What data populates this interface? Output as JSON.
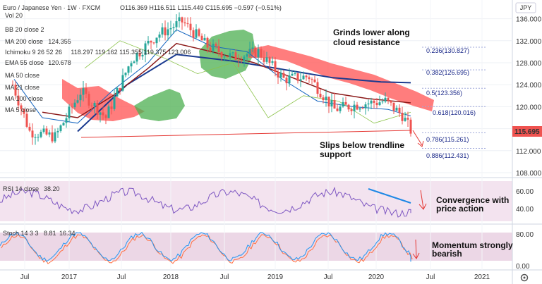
{
  "header": {
    "title": "Euro / Japanese Yen · 1W · FXCM",
    "ohlc": "O116.369 H116.511 L115.449 C115.695 −0.597 (−0.51%)",
    "currency": "JPY"
  },
  "indicators": [
    {
      "label": "Vol 20",
      "dim": true
    },
    {
      "label": "BB 20 close 2",
      "dim": true
    },
    {
      "label": "MA 200 close",
      "value": "124.355"
    },
    {
      "label": "Ichimoku 9 26 52 26",
      "value": "118.297 119.162 115.355 119.375 123.006"
    },
    {
      "label": "EMA 55 close",
      "value": "120.678"
    },
    {
      "label": "MA 50 close",
      "dim": true
    },
    {
      "label": "MA 21 close",
      "dim": true
    },
    {
      "label": "MA 100 close",
      "dim": true
    },
    {
      "label": "MA 5 close",
      "dim": true
    }
  ],
  "price_axis": {
    "ticks": [
      "136.000",
      "132.000",
      "128.000",
      "124.000",
      "120.000",
      "116.000",
      "112.000",
      "108.000"
    ],
    "last_price": "115.695"
  },
  "time_axis": {
    "labels": [
      "Jul",
      "2017",
      "Jul",
      "2018",
      "Jul",
      "2019",
      "Jul",
      "2020",
      "Jul",
      "2021"
    ]
  },
  "fib_levels": [
    {
      "label": "0.236(130.827)"
    },
    {
      "label": "0.382(126.695)"
    },
    {
      "label": "0.5(123.356)"
    },
    {
      "label": "0.618(120.016)"
    },
    {
      "label": "0.786(115.261)"
    },
    {
      "label": "0.886(112.431)"
    }
  ],
  "annotations": {
    "cloud": [
      "Grinds lower along",
      "cloud resistance"
    ],
    "trendline": [
      "Slips below trendline",
      "support"
    ],
    "rsi": [
      "Convergence with",
      "price action"
    ],
    "stoch": [
      "Momentum strongly",
      "bearish"
    ]
  },
  "rsi": {
    "label": "RSI 14 close",
    "value": "38.20",
    "ticks": [
      "60.00",
      "40.00"
    ]
  },
  "stoch": {
    "label": "Stoch 14 3 3",
    "k": "8.81",
    "d": "16.34",
    "ticks": [
      "80.00",
      "0.00"
    ]
  },
  "colors": {
    "up": "#26a69a",
    "down": "#ef5350",
    "ma200": "#1a3a8f",
    "ema55": "#8b1a1a",
    "cloud_bull": "#4caf50",
    "cloud_bear": "#ff5252",
    "rsi": "#7e57c2",
    "stoch_k": "#2196f3",
    "stoch_d": "#ff7043",
    "trend": "#e53935"
  },
  "chart_data": {
    "type": "candlestick",
    "title": "Euro / Japanese Yen",
    "x": [
      "2016-05",
      "2016-07",
      "2016-10",
      "2017-01",
      "2017-04",
      "2017-07",
      "2017-10",
      "2018-01",
      "2018-04",
      "2018-07",
      "2018-10",
      "2019-01",
      "2019-04",
      "2019-07",
      "2019-10",
      "2020-01",
      "2020-03",
      "2020-04"
    ],
    "close": [
      124.0,
      115.5,
      114.5,
      122.8,
      118.0,
      128.5,
      133.0,
      135.5,
      131.0,
      129.0,
      130.0,
      125.0,
      125.5,
      119.5,
      120.5,
      121.0,
      118.5,
      115.7
    ],
    "ylim": [
      108,
      138
    ],
    "y_ticks": [
      108,
      112,
      116,
      120,
      124,
      128,
      132,
      136
    ],
    "fib": [
      130.827,
      126.695,
      123.356,
      120.016,
      115.261,
      112.431
    ],
    "ma200_value": 124.355,
    "ema55_value": 120.678,
    "rsi_last": 38.2,
    "stoch_k_last": 8.81,
    "stoch_d_last": 16.34
  }
}
